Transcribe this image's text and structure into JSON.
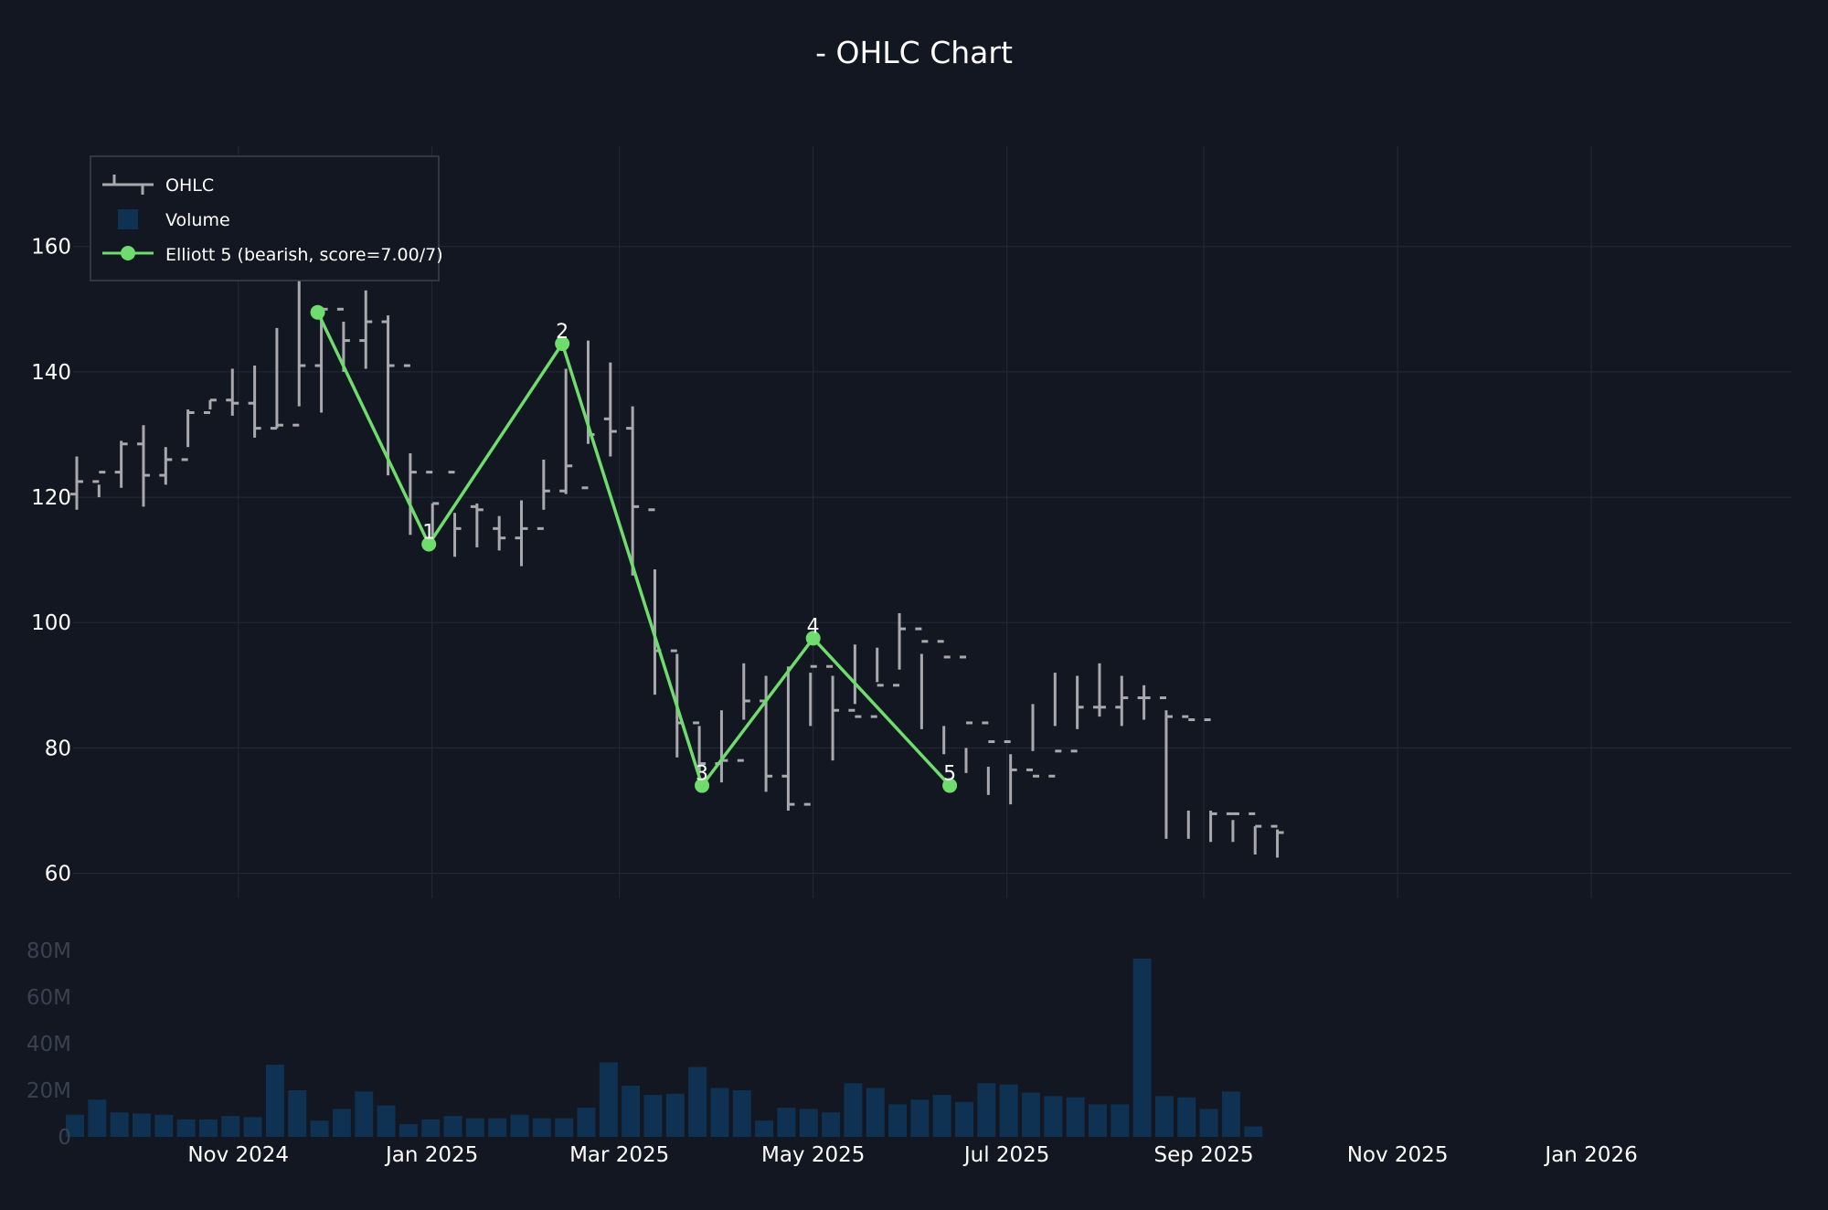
{
  "chart_data": {
    "type": "ohlc",
    "title": "- OHLC Chart",
    "colors": {
      "background": "#131722",
      "ohlc": "#a9a9ad",
      "volume": "#0f3152",
      "elliott": "#6fdc6e",
      "grid": "#232a38"
    },
    "price_axis": {
      "range": [
        56,
        176
      ],
      "ticks": [
        60,
        80,
        100,
        120,
        140,
        160
      ]
    },
    "volume_axis": {
      "range": [
        0,
        80000000
      ],
      "ticks": [
        0,
        20000000,
        40000000,
        60000000,
        80000000
      ],
      "tick_labels": [
        "0",
        "20M",
        "40M",
        "60M",
        "80M"
      ]
    },
    "x_axis": {
      "range": [
        "2024-09-10",
        "2026-03-05"
      ],
      "ticks": [
        "2024-11-01",
        "2025-01-01",
        "2025-03-01",
        "2025-05-01",
        "2025-07-01",
        "2025-09-01",
        "2025-11-01",
        "2026-01-01"
      ],
      "tick_labels": [
        "Nov 2024",
        "Jan 2025",
        "Mar 2025",
        "May 2025",
        "Jul 2025",
        "Sep 2025",
        "Nov 2025",
        "Jan 2026"
      ]
    },
    "legend": {
      "position": "top-left",
      "entries": [
        "OHLC",
        "Volume",
        "Elliott 5 (bearish, score=7.00/7)"
      ]
    },
    "ohlc": {
      "dates": [
        "2024-09-10",
        "2024-09-17",
        "2024-09-24",
        "2024-10-01",
        "2024-10-08",
        "2024-10-15",
        "2024-10-22",
        "2024-10-29",
        "2024-11-05",
        "2024-11-12",
        "2024-11-19",
        "2024-11-26",
        "2024-12-03",
        "2024-12-10",
        "2024-12-17",
        "2024-12-24",
        "2024-12-31",
        "2025-01-07",
        "2025-01-14",
        "2025-01-21",
        "2025-01-28",
        "2025-02-04",
        "2025-02-11",
        "2025-02-18",
        "2025-02-25",
        "2025-03-04",
        "2025-03-11",
        "2025-03-18",
        "2025-03-25",
        "2025-04-01",
        "2025-04-08",
        "2025-04-15",
        "2025-04-22",
        "2025-04-29",
        "2025-05-06",
        "2025-05-13",
        "2025-05-20",
        "2025-05-27",
        "2025-06-03",
        "2025-06-10",
        "2025-06-17",
        "2025-06-24",
        "2025-07-01",
        "2025-07-08",
        "2025-07-15",
        "2025-07-22",
        "2025-07-29",
        "2025-08-05",
        "2025-08-12",
        "2025-08-19",
        "2025-08-26",
        "2025-09-02",
        "2025-09-09",
        "2025-09-16",
        "2025-09-23"
      ],
      "open": [
        120.5,
        122.5,
        124,
        128.5,
        123.5,
        126,
        133.5,
        135.5,
        135,
        131,
        131.5,
        141,
        150,
        145,
        148,
        141,
        124,
        124,
        118.5,
        115,
        113.5,
        115,
        121,
        121.5,
        132.5,
        131,
        118,
        95.5,
        84,
        77.5,
        78,
        87.5,
        75.5,
        71,
        93,
        86,
        85,
        90,
        99,
        97,
        94.5,
        84,
        81,
        76.5,
        75.5,
        79.5,
        86.5,
        86.5,
        88,
        88,
        85,
        84.5,
        69.5,
        69.5,
        67.5
      ],
      "high": [
        126.5,
        122,
        129,
        131.5,
        128,
        134,
        135.5,
        140.5,
        141,
        147,
        172,
        149,
        148,
        153,
        149,
        127,
        119,
        117.5,
        119,
        117,
        119.5,
        126,
        140.5,
        145,
        141.5,
        134.5,
        108.5,
        95,
        83.5,
        86,
        93.5,
        91.5,
        93,
        92,
        91.5,
        96.5,
        96,
        101.5,
        95,
        83.5,
        80,
        77,
        79,
        87,
        92,
        91.5,
        93.5,
        91.5,
        90,
        86,
        70,
        70,
        68.5,
        67.5,
        67
      ],
      "low": [
        118,
        120,
        121.5,
        118.5,
        122,
        128,
        134,
        133,
        129.5,
        131,
        134.5,
        133.5,
        140,
        140.5,
        123.5,
        114,
        112,
        110.5,
        112,
        111.5,
        109,
        118,
        120.5,
        128.5,
        126.5,
        107.5,
        88.5,
        78.5,
        76,
        74.5,
        84.5,
        73,
        70,
        83.5,
        78,
        87,
        90.5,
        92.5,
        83,
        79,
        76,
        72.5,
        71,
        79.5,
        83.5,
        83,
        85,
        83.5,
        84.5,
        65.5,
        65.5,
        65,
        65,
        63,
        62.5
      ],
      "close": [
        122.5,
        124,
        128.5,
        123.5,
        126,
        133.5,
        135.5,
        135,
        131,
        131.5,
        141,
        150,
        145,
        148,
        141,
        124,
        119,
        115,
        118,
        113.5,
        115,
        121,
        125,
        130,
        130.5,
        118.5,
        95.5,
        84,
        77.5,
        78,
        87.5,
        75.5,
        71,
        93,
        86,
        85,
        90,
        99,
        97,
        94.5,
        84,
        81,
        76.5,
        75.5,
        79.5,
        86.5,
        86.5,
        88,
        88,
        85,
        84.5,
        69.5,
        69.5,
        67.5,
        66.5
      ]
    },
    "volume": [
      9500000,
      16000000,
      10500000,
      10000000,
      9500000,
      7500000,
      7500000,
      9000000,
      8500000,
      31000000,
      20000000,
      7000000,
      12000000,
      19500000,
      13500000,
      5500000,
      7500000,
      9000000,
      8000000,
      8000000,
      9500000,
      8000000,
      8000000,
      12500000,
      32000000,
      22000000,
      18000000,
      18500000,
      30000000,
      21000000,
      20000000,
      7000000,
      12500000,
      12000000,
      10500000,
      23000000,
      21000000,
      14000000,
      16000000,
      18000000,
      15000000,
      23000000,
      22500000,
      19000000,
      17500000,
      17000000,
      14000000,
      14000000,
      76500000,
      17500000,
      17000000,
      12000000,
      19500000,
      4500000,
      0
    ],
    "elliott_wave": {
      "name": "Elliott 5 (bearish, score=7.00/7)",
      "points": [
        {
          "date": "2024-11-26",
          "price": 149.5,
          "label": ""
        },
        {
          "date": "2024-12-31",
          "price": 112.5,
          "label": "1"
        },
        {
          "date": "2025-02-11",
          "price": 144.5,
          "label": "2"
        },
        {
          "date": "2025-03-27",
          "price": 74,
          "label": "3"
        },
        {
          "date": "2025-05-01",
          "price": 97.5,
          "label": "4"
        },
        {
          "date": "2025-06-13",
          "price": 74,
          "label": "5"
        }
      ]
    }
  }
}
